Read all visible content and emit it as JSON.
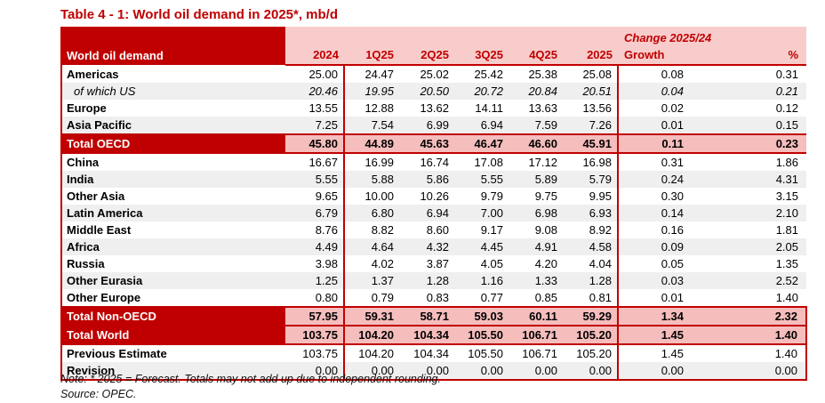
{
  "title": "Table 4 - 1: World oil demand in 2025*, mb/d",
  "colors": {
    "accent_dark_red": "#C00000",
    "header_pink": "#F8CCCB",
    "total_row_pink": "#F6BDBD",
    "stripe_gray": "#EFEFEF"
  },
  "table": {
    "label_header": "World oil demand",
    "change_header": "Change 2025/24",
    "columns": [
      "2024",
      "1Q25",
      "2Q25",
      "3Q25",
      "4Q25",
      "2025",
      "Growth",
      "%"
    ],
    "rows": [
      {
        "label": "Americas",
        "style": "normal",
        "values": [
          "25.00",
          "24.47",
          "25.02",
          "25.42",
          "25.38",
          "25.08",
          "0.08",
          "0.31"
        ]
      },
      {
        "label": "of which US",
        "style": "italic",
        "values": [
          "20.46",
          "19.95",
          "20.50",
          "20.72",
          "20.84",
          "20.51",
          "0.04",
          "0.21"
        ]
      },
      {
        "label": "Europe",
        "style": "normal",
        "values": [
          "13.55",
          "12.88",
          "13.62",
          "14.11",
          "13.63",
          "13.56",
          "0.02",
          "0.12"
        ]
      },
      {
        "label": "Asia Pacific",
        "style": "normal",
        "values": [
          "7.25",
          "7.54",
          "6.99",
          "6.94",
          "7.59",
          "7.26",
          "0.01",
          "0.15"
        ]
      },
      {
        "label": "Total OECD",
        "style": "total",
        "values": [
          "45.80",
          "44.89",
          "45.63",
          "46.47",
          "46.60",
          "45.91",
          "0.11",
          "0.23"
        ]
      },
      {
        "label": "China",
        "style": "normal",
        "values": [
          "16.67",
          "16.99",
          "16.74",
          "17.08",
          "17.12",
          "16.98",
          "0.31",
          "1.86"
        ]
      },
      {
        "label": "India",
        "style": "normal",
        "values": [
          "5.55",
          "5.88",
          "5.86",
          "5.55",
          "5.89",
          "5.79",
          "0.24",
          "4.31"
        ]
      },
      {
        "label": "Other Asia",
        "style": "normal",
        "values": [
          "9.65",
          "10.00",
          "10.26",
          "9.79",
          "9.75",
          "9.95",
          "0.30",
          "3.15"
        ]
      },
      {
        "label": "Latin America",
        "style": "normal",
        "values": [
          "6.79",
          "6.80",
          "6.94",
          "7.00",
          "6.98",
          "6.93",
          "0.14",
          "2.10"
        ]
      },
      {
        "label": "Middle East",
        "style": "normal",
        "values": [
          "8.76",
          "8.82",
          "8.60",
          "9.17",
          "9.08",
          "8.92",
          "0.16",
          "1.81"
        ]
      },
      {
        "label": "Africa",
        "style": "normal",
        "values": [
          "4.49",
          "4.64",
          "4.32",
          "4.45",
          "4.91",
          "4.58",
          "0.09",
          "2.05"
        ]
      },
      {
        "label": "Russia",
        "style": "normal",
        "values": [
          "3.98",
          "4.02",
          "3.87",
          "4.05",
          "4.20",
          "4.04",
          "0.05",
          "1.35"
        ]
      },
      {
        "label": "Other Eurasia",
        "style": "normal",
        "values": [
          "1.25",
          "1.37",
          "1.28",
          "1.16",
          "1.33",
          "1.28",
          "0.03",
          "2.52"
        ]
      },
      {
        "label": "Other Europe",
        "style": "normal",
        "values": [
          "0.80",
          "0.79",
          "0.83",
          "0.77",
          "0.85",
          "0.81",
          "0.01",
          "1.40"
        ]
      },
      {
        "label": "Total Non-OECD",
        "style": "total",
        "values": [
          "57.95",
          "59.31",
          "58.71",
          "59.03",
          "60.11",
          "59.29",
          "1.34",
          "2.32"
        ]
      },
      {
        "label": "Total World",
        "style": "total",
        "values": [
          "103.75",
          "104.20",
          "104.34",
          "105.50",
          "106.71",
          "105.20",
          "1.45",
          "1.40"
        ]
      },
      {
        "label": "Previous Estimate",
        "style": "normal",
        "values": [
          "103.75",
          "104.20",
          "104.34",
          "105.50",
          "106.71",
          "105.20",
          "1.45",
          "1.40"
        ]
      },
      {
        "label": "Revision",
        "style": "normal",
        "values": [
          "0.00",
          "0.00",
          "0.00",
          "0.00",
          "0.00",
          "0.00",
          "0.00",
          "0.00"
        ]
      }
    ]
  },
  "note": "Note: * 2025 = Forecast. Totals may not add up due to independent rounding.",
  "source": "Source: OPEC."
}
